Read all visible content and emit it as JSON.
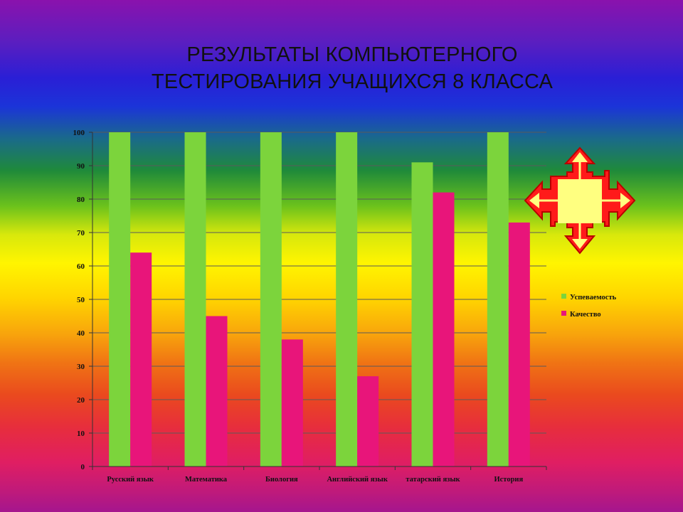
{
  "title_lines": [
    "РЕЗУЛЬТАТЫ КОМПЬЮТЕРНОГО",
    "ТЕСТИРОВАНИЯ УЧАЩИХСЯ 8 КЛАССА"
  ],
  "chart_data": {
    "type": "bar",
    "title": "РЕЗУЛЬТАТЫ КОМПЬЮТЕРНОГО ТЕСТИРОВАНИЯ УЧАЩИХСЯ 8 КЛАССА",
    "categories": [
      "Русский язык",
      "Математика",
      "Биология",
      "Английский язык",
      "татарский язык",
      "История"
    ],
    "series": [
      {
        "name": "Успеваемость",
        "values": [
          100,
          100,
          100,
          100,
          91,
          100
        ],
        "color": "#7cd43c"
      },
      {
        "name": "Качество",
        "values": [
          64,
          45,
          38,
          27,
          82,
          73
        ],
        "color": "#e8157a"
      }
    ],
    "ylim": [
      0,
      100
    ],
    "yticks": [
      0,
      10,
      20,
      30,
      40,
      50,
      60,
      70,
      80,
      90,
      100
    ],
    "grid": true,
    "legend": "right"
  },
  "decoration": {
    "icon": "four-way-arrow-icon",
    "fill": "#ffff80",
    "stroke": "#ff1a1a"
  }
}
